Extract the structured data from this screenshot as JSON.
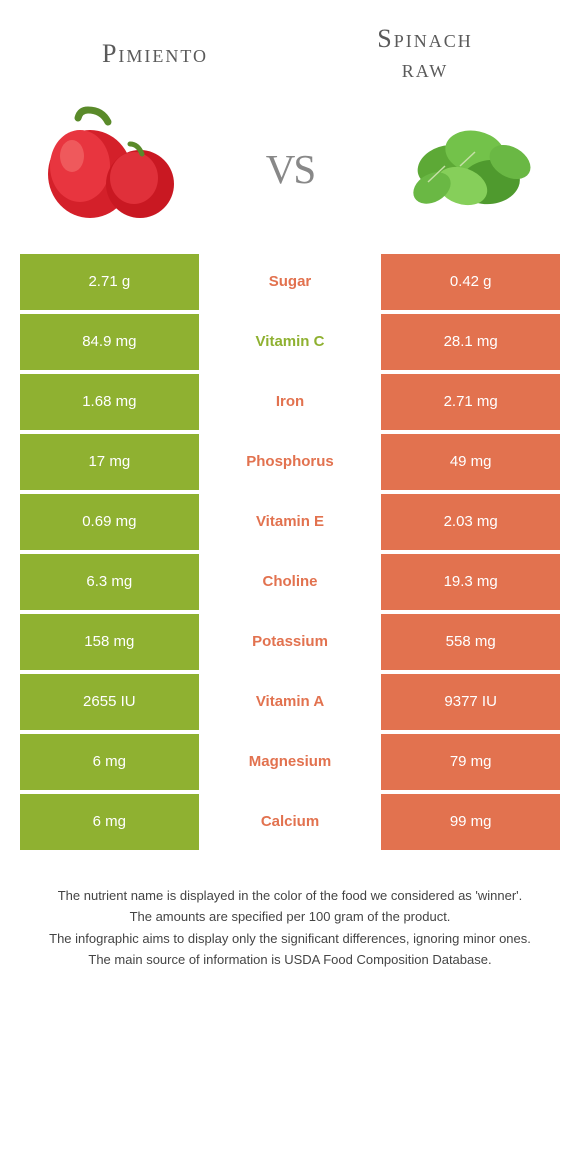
{
  "colors": {
    "green": "#8fb131",
    "orange": "#e2724f",
    "title": "#5a5a5a",
    "vs": "#888888"
  },
  "food_left": {
    "title": "Pimiento"
  },
  "food_right": {
    "title_line1": "Spinach",
    "title_line2": "raw"
  },
  "vs": "vs",
  "rows": [
    {
      "left": "2.71 g",
      "label": "Sugar",
      "right": "0.42 g",
      "winner": "right"
    },
    {
      "left": "84.9 mg",
      "label": "Vitamin C",
      "right": "28.1 mg",
      "winner": "left"
    },
    {
      "left": "1.68 mg",
      "label": "Iron",
      "right": "2.71 mg",
      "winner": "right"
    },
    {
      "left": "17 mg",
      "label": "Phosphorus",
      "right": "49 mg",
      "winner": "right"
    },
    {
      "left": "0.69 mg",
      "label": "Vitamin E",
      "right": "2.03 mg",
      "winner": "right"
    },
    {
      "left": "6.3 mg",
      "label": "Choline",
      "right": "19.3 mg",
      "winner": "right"
    },
    {
      "left": "158 mg",
      "label": "Potassium",
      "right": "558 mg",
      "winner": "right"
    },
    {
      "left": "2655 IU",
      "label": "Vitamin A",
      "right": "9377 IU",
      "winner": "right"
    },
    {
      "left": "6 mg",
      "label": "Magnesium",
      "right": "79 mg",
      "winner": "right"
    },
    {
      "left": "6 mg",
      "label": "Calcium",
      "right": "99 mg",
      "winner": "right"
    }
  ],
  "footnotes": [
    "The nutrient name is displayed in the color of the food we considered as 'winner'.",
    "The amounts are specified per 100 gram of the product.",
    "The infographic aims to display only the significant differences, ignoring minor ones.",
    "The main source of information is USDA Food Composition Database."
  ]
}
